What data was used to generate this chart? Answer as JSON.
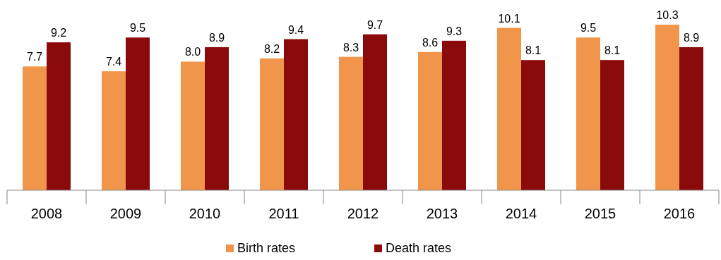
{
  "chart_data": {
    "type": "bar",
    "categories": [
      "2008",
      "2009",
      "2010",
      "2011",
      "2012",
      "2013",
      "2014",
      "2015",
      "2016"
    ],
    "series": [
      {
        "name": "Birth rates",
        "color": "#f0954a",
        "values": [
          7.7,
          7.4,
          8.0,
          8.2,
          8.3,
          8.6,
          10.1,
          9.5,
          10.3
        ],
        "value_labels": [
          "7.7",
          "7.4",
          "8.0",
          "8.2",
          "8.3",
          "8.6",
          "10.1",
          "9.5",
          "10.3"
        ]
      },
      {
        "name": "Death rates",
        "color": "#8b0a0c",
        "values": [
          9.2,
          9.5,
          8.9,
          9.4,
          9.7,
          9.3,
          8.1,
          8.1,
          8.9
        ],
        "value_labels": [
          "9.2",
          "9.5",
          "8.9",
          "9.4",
          "9.7",
          "9.3",
          "8.1",
          "8.1",
          "8.9"
        ]
      }
    ],
    "legend": "bottom"
  }
}
